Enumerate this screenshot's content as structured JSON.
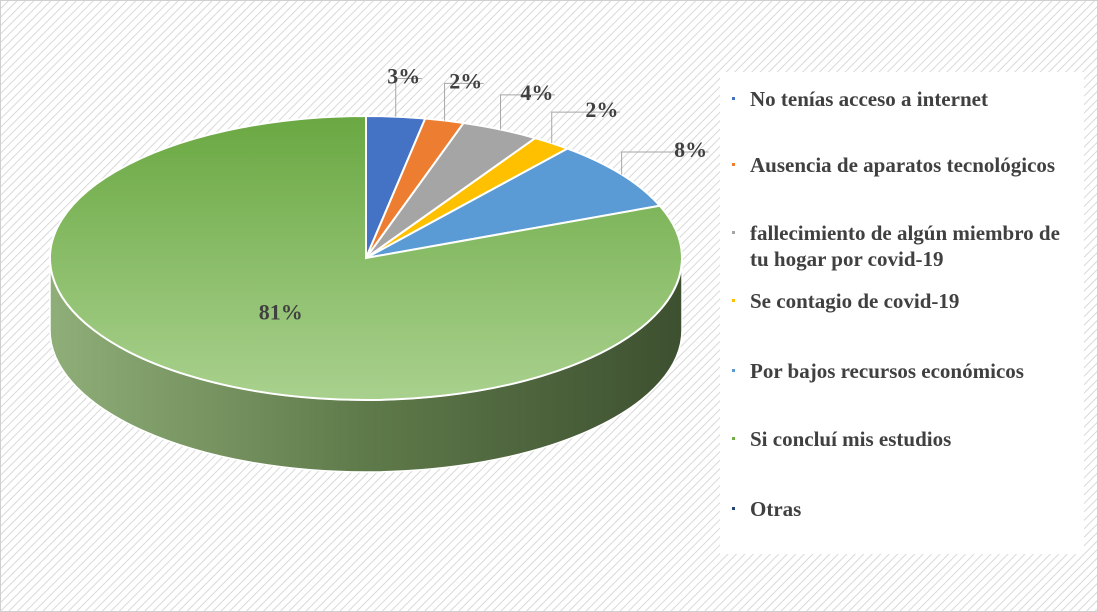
{
  "chart_data": {
    "type": "pie3d",
    "categories": [
      "No tenías acceso a internet",
      "Ausencia de aparatos tecnológicos",
      "fallecimiento de algún miembro de tu hogar por covid-19",
      "Se contagio de covid-19",
      "Por bajos recursos económicos",
      "Si concluí mis estudios",
      "Otras"
    ],
    "values": [
      3,
      2,
      4,
      2,
      8,
      81,
      0
    ],
    "value_labels": [
      "3%",
      "2%",
      "4%",
      "2%",
      "8%",
      "81%",
      null
    ],
    "colors": [
      "#4472c4",
      "#ed7d31",
      "#a5a5a5",
      "#ffc000",
      "#5b9bd5",
      "#70ad47",
      "#264478"
    ],
    "legend": "right"
  }
}
